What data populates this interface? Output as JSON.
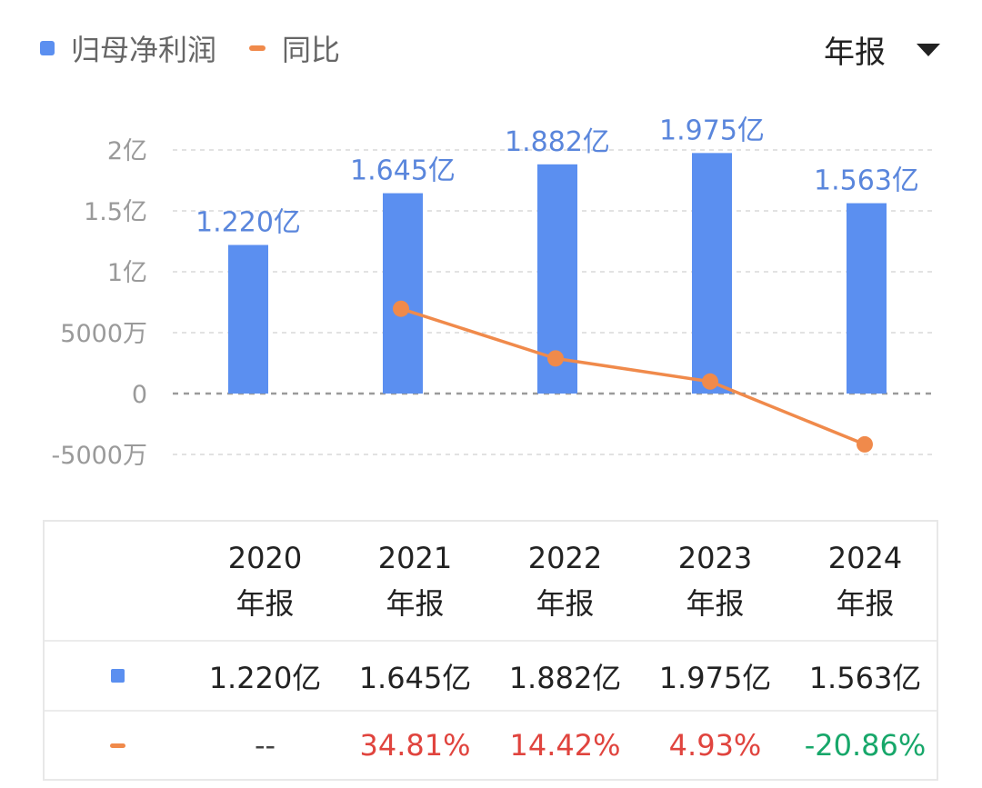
{
  "legend": {
    "bar_label": "归母净利润",
    "line_label": "同比"
  },
  "period_selector": {
    "value": "年报"
  },
  "colors": {
    "bar": "#5b8ff0",
    "line": "#f08a4b",
    "up": "#e0443e",
    "down": "#17a76a",
    "grid": "#e2e2e2",
    "zero_line": "#9a9a9a"
  },
  "chart_data": {
    "type": "bar",
    "categories": [
      "2020年报",
      "2021年报",
      "2022年报",
      "2023年报",
      "2024年报"
    ],
    "series": [
      {
        "name": "归母净利润",
        "type": "bar",
        "values": [
          1.22,
          1.645,
          1.882,
          1.975,
          1.563
        ],
        "labels": [
          "1.220亿",
          "1.645亿",
          "1.882亿",
          "1.975亿",
          "1.563亿"
        ]
      },
      {
        "name": "同比",
        "type": "line",
        "values": [
          null,
          34.81,
          14.42,
          4.93,
          -20.86
        ]
      }
    ],
    "y_axis": {
      "ticks": [
        "2亿",
        "1.5亿",
        "1亿",
        "5000万",
        "0",
        "-5000万"
      ],
      "tick_values": [
        2,
        1.5,
        1,
        0.5,
        0,
        -0.5
      ],
      "ylim": [
        -0.5,
        2
      ]
    },
    "grid": "dashed horizontal"
  },
  "table": {
    "years": [
      {
        "year": "2020",
        "type": "年报"
      },
      {
        "year": "2021",
        "type": "年报"
      },
      {
        "year": "2022",
        "type": "年报"
      },
      {
        "year": "2023",
        "type": "年报"
      },
      {
        "year": "2024",
        "type": "年报"
      }
    ],
    "profit_row": [
      "1.220亿",
      "1.645亿",
      "1.882亿",
      "1.975亿",
      "1.563亿"
    ],
    "yoy_row": [
      "--",
      "34.81%",
      "14.42%",
      "4.93%",
      "-20.86%"
    ]
  }
}
